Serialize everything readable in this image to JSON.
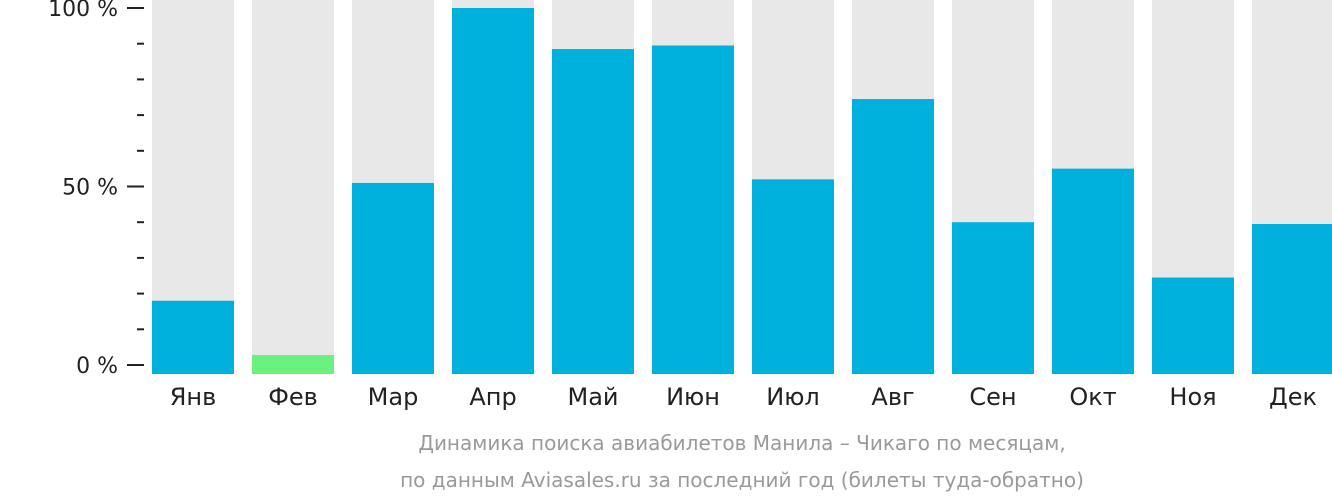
{
  "chart_data": {
    "type": "bar",
    "categories": [
      "Янв",
      "Фев",
      "Мар",
      "Апр",
      "Май",
      "Июн",
      "Июл",
      "Авг",
      "Сен",
      "Окт",
      "Ноя",
      "Дек"
    ],
    "values": [
      18,
      2.8,
      51,
      100,
      88.5,
      89.5,
      52,
      74.5,
      40,
      55,
      24.5,
      39.5
    ],
    "highlight_index": 1,
    "ylim": [
      0,
      100
    ],
    "yticks": [
      {
        "value": 0,
        "label": "0 %"
      },
      {
        "value": 50,
        "label": "50 %"
      },
      {
        "value": 100,
        "label": "100 %"
      }
    ],
    "minor_tick_step": 10,
    "title": "",
    "xlabel": "",
    "ylabel": "",
    "grid": false,
    "colors": {
      "bar": "#00b0dd",
      "highlight": "#6bf27e",
      "background_bar": "#e8e8e8",
      "axis": "#222222"
    }
  },
  "caption": {
    "line1": "Динамика поиска авиабилетов Манила – Чикаго по месяцам,",
    "line2": "по данным Aviasales.ru за последний год (билеты туда-обратно)"
  }
}
